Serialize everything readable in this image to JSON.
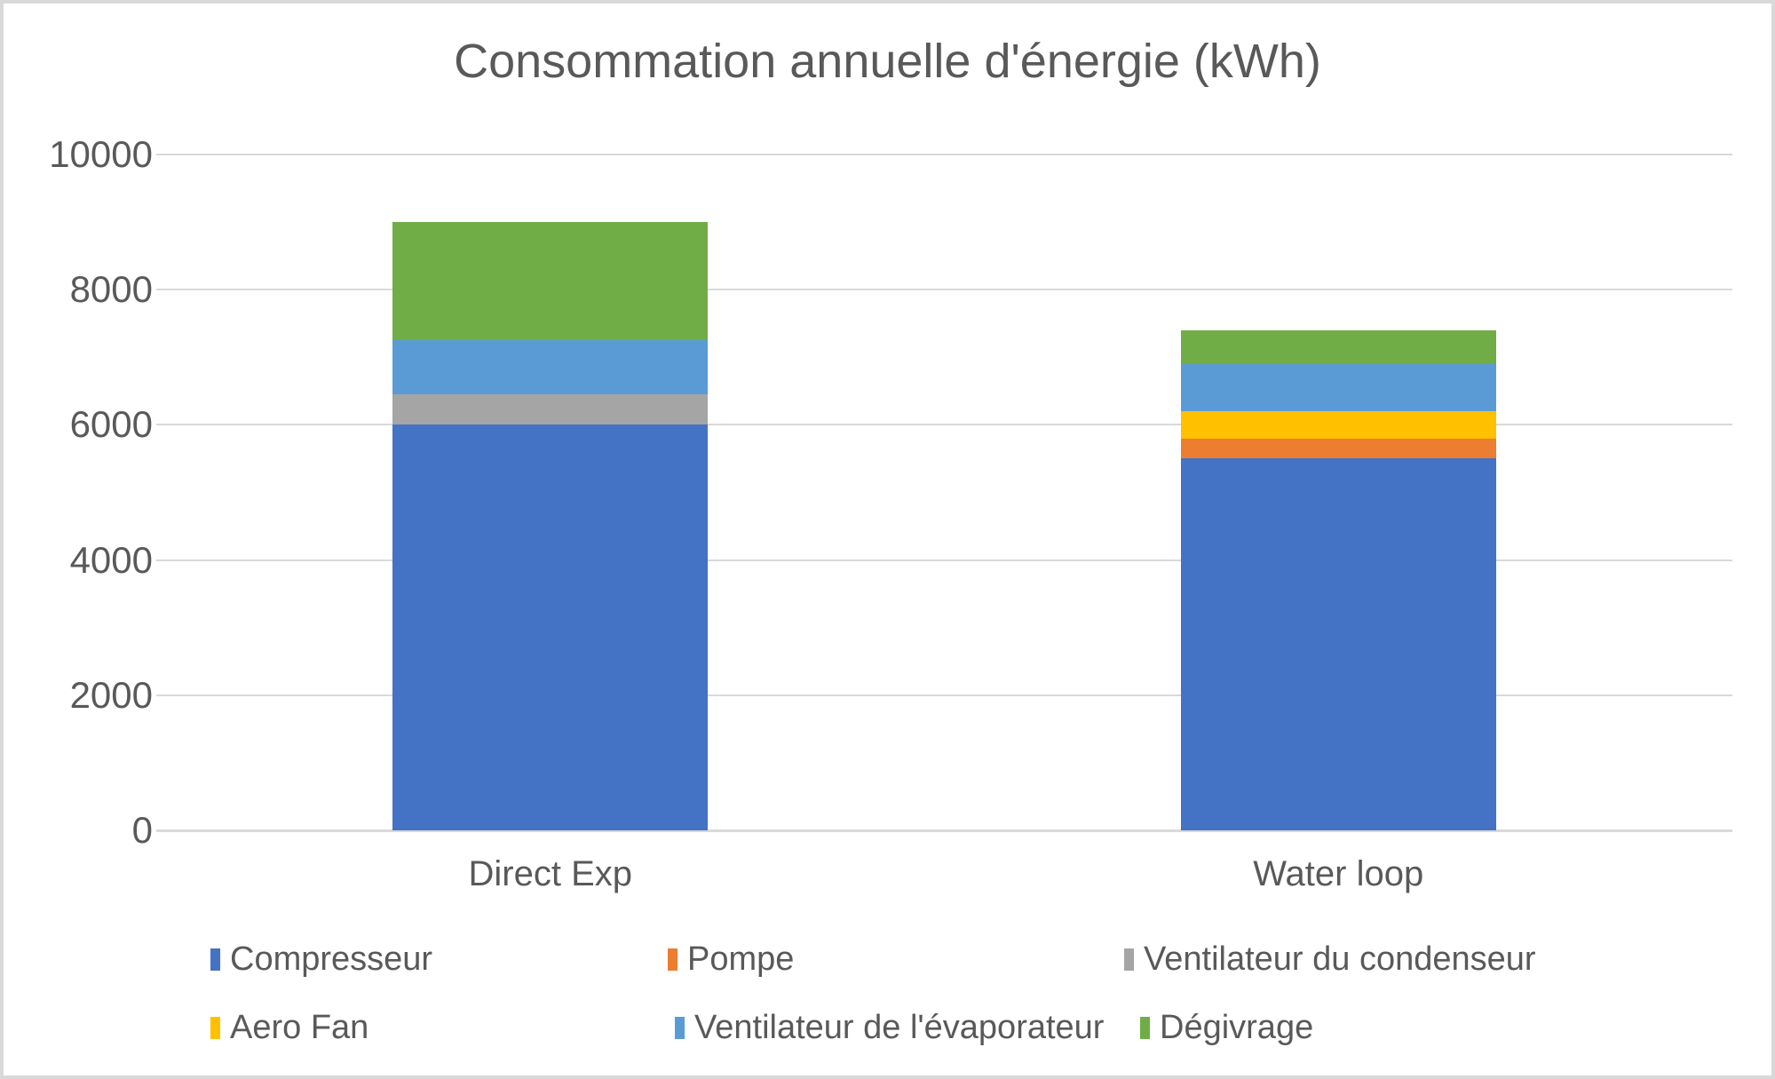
{
  "chart": {
    "title": "Consommation annuelle d'énergie (kWh)"
  },
  "chart_data": {
    "type": "bar",
    "stacked": true,
    "title": "Consommation annuelle d'énergie (kWh)",
    "xlabel": "",
    "ylabel": "",
    "categories": [
      "Direct Exp",
      "Water loop"
    ],
    "series": [
      {
        "name": "Compresseur",
        "color": "#4472C4",
        "values": [
          6000,
          5500
        ]
      },
      {
        "name": "Pompe",
        "color": "#ED7D31",
        "values": [
          0,
          300
        ]
      },
      {
        "name": "Ventilateur du condenseur",
        "color": "#A5A5A5",
        "values": [
          450,
          0
        ]
      },
      {
        "name": "Aero Fan",
        "color": "#FFC000",
        "values": [
          0,
          400
        ]
      },
      {
        "name": "Ventilateur de l'évaporateur",
        "color": "#5B9BD5",
        "values": [
          800,
          700
        ]
      },
      {
        "name": "Dégivrage",
        "color": "#70AD47",
        "values": [
          1750,
          500
        ]
      }
    ],
    "totals": [
      9000,
      7400
    ],
    "ylim": [
      0,
      10000
    ],
    "yticks": [
      0,
      2000,
      4000,
      6000,
      8000,
      10000
    ],
    "grid": true,
    "legend_position": "bottom",
    "colors": {
      "grid": "#D9D9D9",
      "axis": "#D9D9D9",
      "border": "#D9D9D9",
      "text": "#595959",
      "background": "#FFFFFF"
    }
  }
}
